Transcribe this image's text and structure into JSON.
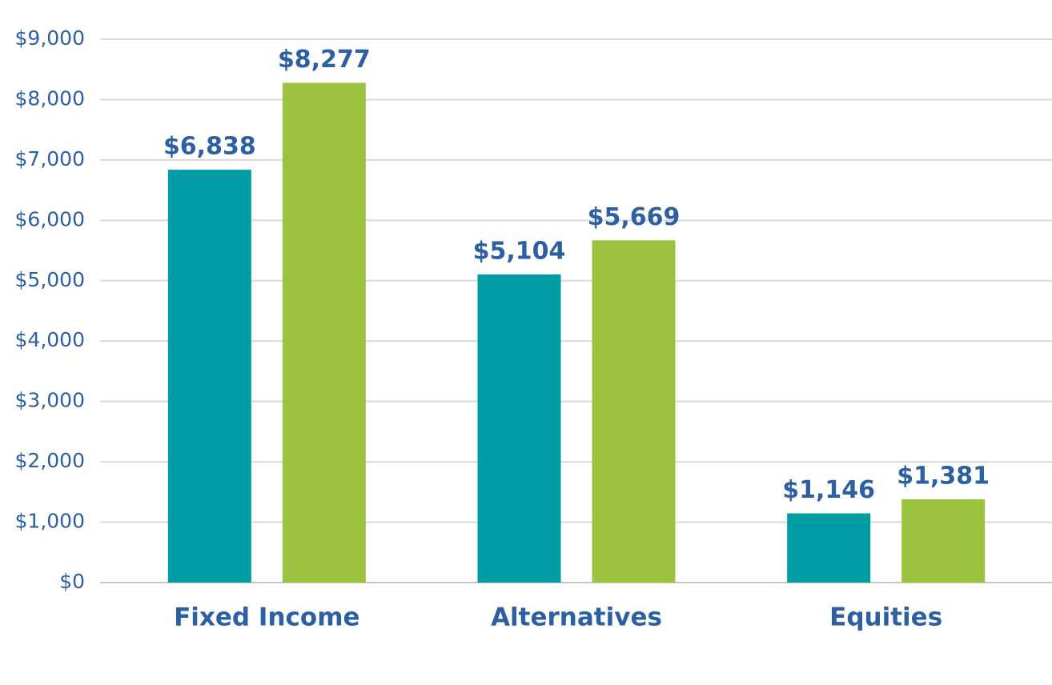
{
  "chart_data": {
    "type": "bar",
    "categories": [
      "Fixed Income",
      "Alternatives",
      "Equities"
    ],
    "series": [
      {
        "color": "#009ca6",
        "values": [
          6838,
          5104,
          1146
        ],
        "value_labels": [
          "$6,838",
          "$5,104",
          "$1,146"
        ]
      },
      {
        "color": "#9bc33f",
        "values": [
          8277,
          5669,
          1381
        ],
        "value_labels": [
          "$8,277",
          "$5,669",
          "$1,381"
        ]
      }
    ],
    "ylim": [
      0,
      9000
    ],
    "yticks": [
      {
        "value": 0,
        "label": "$0"
      },
      {
        "value": 1000,
        "label": "$1,000"
      },
      {
        "value": 2000,
        "label": "$2,000"
      },
      {
        "value": 3000,
        "label": "$3,000"
      },
      {
        "value": 4000,
        "label": "$4,000"
      },
      {
        "value": 5000,
        "label": "$5,000"
      },
      {
        "value": 6000,
        "label": "$6,000"
      },
      {
        "value": 7000,
        "label": "$7,000"
      },
      {
        "value": 8000,
        "label": "$8,000"
      },
      {
        "value": 9000,
        "label": "$9,000"
      }
    ],
    "grid": true
  }
}
